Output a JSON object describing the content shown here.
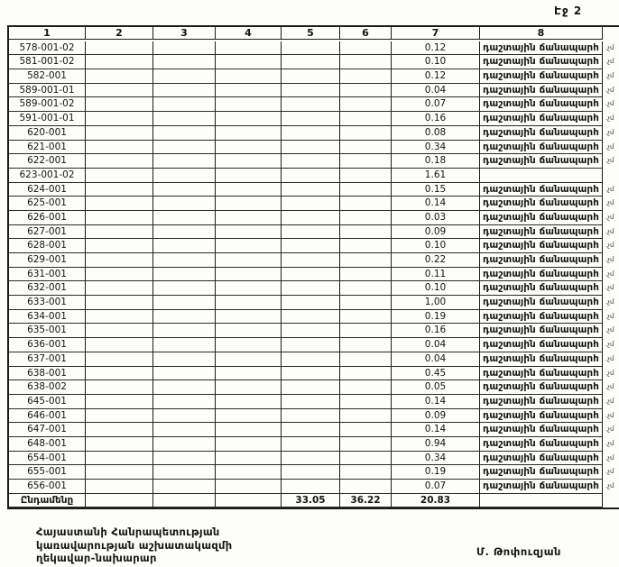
{
  "page": {
    "page_label": "Էջ 2"
  },
  "table": {
    "headers": [
      "1",
      "2",
      "3",
      "4",
      "5",
      "6",
      "7",
      "8"
    ],
    "rows": [
      {
        "code": "578-001-02",
        "area": "0.12",
        "name": "դաշտային ճանապարհ",
        "note": ".չմ"
      },
      {
        "code": "581-001-02",
        "area": "0.10",
        "name": "դաշտային ճանապարհ",
        "note": ".չմ"
      },
      {
        "code": "582-001",
        "area": "0.12",
        "name": "դաշտային ճանապարհ",
        "note": ".չմ"
      },
      {
        "code": "589-001-01",
        "area": "0.04",
        "name": "դաշտային ճանապարհ",
        "note": ".չմ"
      },
      {
        "code": "589-001-02",
        "area": "0.07",
        "name": "դաշտային ճանապարհ",
        "note": ".չմ"
      },
      {
        "code": "591-001-01",
        "area": "0.16",
        "name": "դաշտային ճանապարհ",
        "note": ".չմ"
      },
      {
        "code": "620-001",
        "area": "0.08",
        "name": "դաշտային ճանապարհ",
        "note": ".չմ"
      },
      {
        "code": "621-001",
        "area": "0.34",
        "name": "դաշտային ճանապարհ",
        "note": ".չմ"
      },
      {
        "code": "622-001",
        "area": "0.18",
        "name": "դաշտային ճանապարհ",
        "note": ".չմ"
      },
      {
        "code": "623-001-02",
        "area": "1.61",
        "name": "",
        "note": ""
      },
      {
        "code": "624-001",
        "area": "0.15",
        "name": "դաշտային ճանապարհ",
        "note": ".չմ"
      },
      {
        "code": "625-001",
        "area": "0.14",
        "name": "դաշտային ճանապարհ",
        "note": ".չմ"
      },
      {
        "code": "626-001",
        "area": "0.03",
        "name": "դաշտային ճանապարհ",
        "note": ".չմ"
      },
      {
        "code": "627-001",
        "area": "0.09",
        "name": "դաշտային ճանապարհ",
        "note": ".չմ"
      },
      {
        "code": "628-001",
        "area": "0.10",
        "name": "դաշտային ճանապարհ",
        "note": ".չմ"
      },
      {
        "code": "629-001",
        "area": "0.22",
        "name": "դաշտային ճանապարհ",
        "note": ".չմ"
      },
      {
        "code": "631-001",
        "area": "0.11",
        "name": "դաշտային ճանապարհ",
        "note": ".չմ"
      },
      {
        "code": "632-001",
        "area": "0.10",
        "name": "դաշտային ճանապարհ",
        "note": ".չմ"
      },
      {
        "code": "633-001",
        "area": "1,00",
        "name": "դաշտային ճանապարհ",
        "note": ".չմ"
      },
      {
        "code": "634-001",
        "area": "0.19",
        "name": "դաշտային ճանապարհ",
        "note": ".չմ"
      },
      {
        "code": "635-001",
        "area": "0.16",
        "name": "դաշտային ճանապարհ",
        "note": ".չմ"
      },
      {
        "code": "636-001",
        "area": "0.04",
        "name": "դաշտային ճանապարհ",
        "note": ".չմ"
      },
      {
        "code": "637-001",
        "area": "0.04",
        "name": "դաշտային ճանապարհ",
        "note": ".չմ"
      },
      {
        "code": "638-001",
        "area": "0.45",
        "name": "դաշտային ճանապարհ",
        "note": ".չմ"
      },
      {
        "code": "638-002",
        "area": "0.05",
        "name": "դաշտային ճանապարհ",
        "note": ".չմ"
      },
      {
        "code": "645-001",
        "area": "0.14",
        "name": "դաշտային ճանապարհ",
        "note": ".չմ"
      },
      {
        "code": "646-001",
        "area": "0.09",
        "name": "դաշտային ճանապարհ",
        "note": ".չմ"
      },
      {
        "code": "647-001",
        "area": "0.14",
        "name": "դաշտային ճանապարհ",
        "note": ".չմ"
      },
      {
        "code": "648-001",
        "area": "0.94",
        "name": "դաշտային ճանապարհ",
        "note": ".չմ"
      },
      {
        "code": "654-001",
        "area": "0.34",
        "name": "դաշտային ճանապարհ",
        "note": ".չմ"
      },
      {
        "code": "655-001",
        "area": "0.19",
        "name": "դաշտային ճանապարհ",
        "note": ".չմ"
      },
      {
        "code": "656-001",
        "area": "0.07",
        "name": "դաշտային ճանապարհ",
        "note": ".չմ"
      }
    ],
    "total": {
      "label": "Ընդամենը",
      "col5": "33.05",
      "col6": "36.22",
      "col7": "20.83"
    }
  },
  "footer": {
    "org_line1": "Հայաստանի Հանրապետության",
    "org_line2": "կառավարության աշխատակազմի",
    "org_line3": "ղեկավար-նախարար",
    "signature": "Մ. Թոփուզյան"
  }
}
